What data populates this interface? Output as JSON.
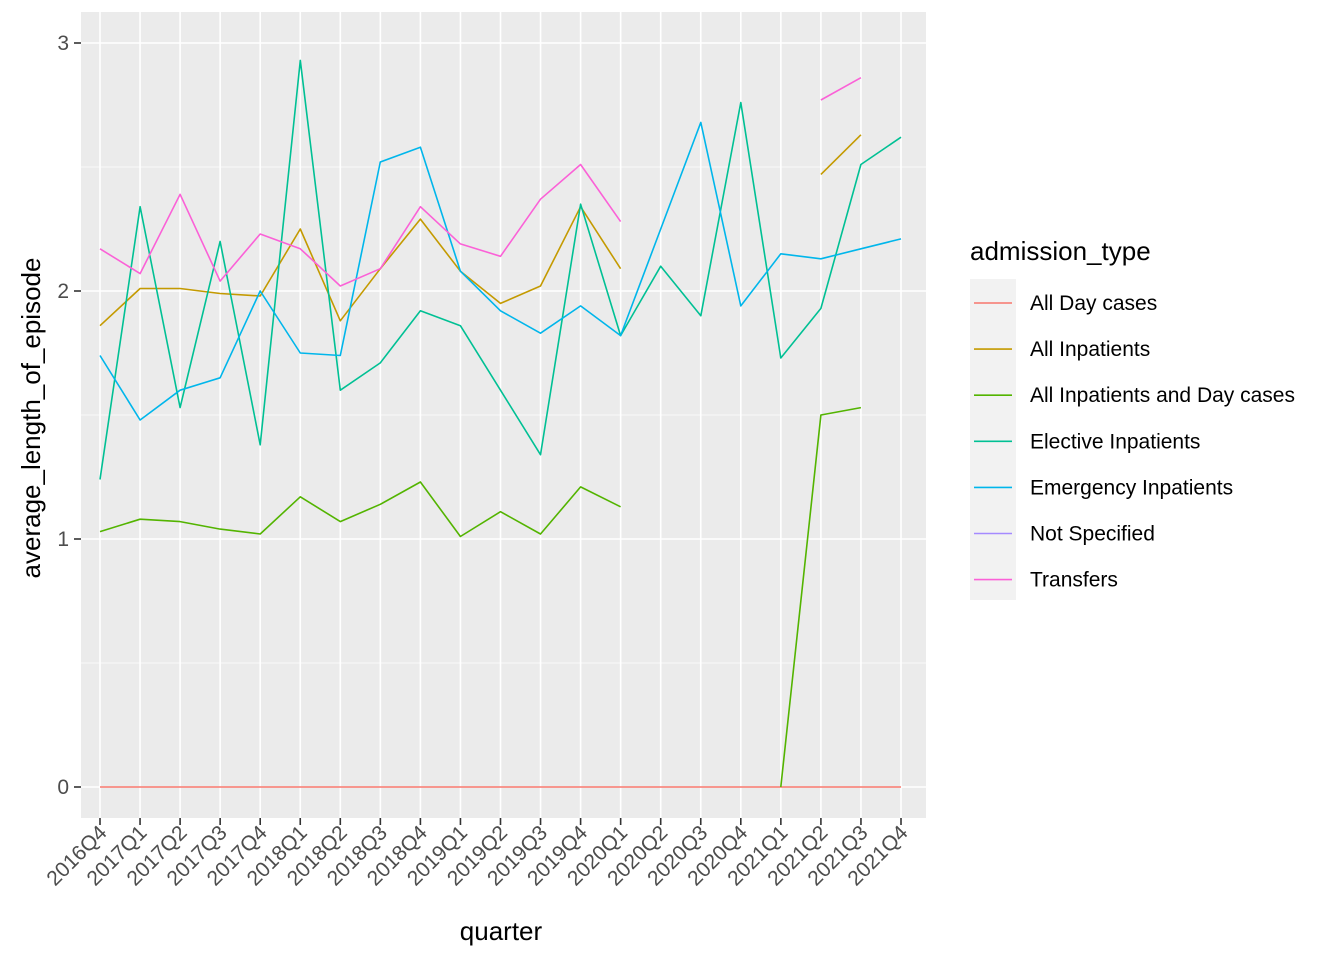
{
  "chart_data": {
    "type": "line",
    "xlabel": "quarter",
    "ylabel": "average_length_of_episode",
    "ylim": [
      -0.125,
      3.125
    ],
    "yticks": [
      0,
      1,
      2,
      3
    ],
    "grid": true,
    "legend_position": "right",
    "legend_title": "admission_type",
    "categories": [
      "2016Q4",
      "2017Q1",
      "2017Q2",
      "2017Q3",
      "2017Q4",
      "2018Q1",
      "2018Q2",
      "2018Q3",
      "2018Q4",
      "2019Q1",
      "2019Q2",
      "2019Q3",
      "2019Q4",
      "2020Q1",
      "2020Q2",
      "2020Q3",
      "2020Q4",
      "2021Q1",
      "2021Q2",
      "2021Q3",
      "2021Q4"
    ],
    "series": [
      {
        "name": "All Day cases",
        "color": "#F8766D",
        "values": [
          0,
          0,
          0,
          0,
          0,
          0,
          0,
          0,
          0,
          0,
          0,
          0,
          0,
          0,
          0,
          0,
          0,
          0,
          0,
          0,
          0
        ]
      },
      {
        "name": "All Inpatients",
        "color": "#C49A00",
        "values": [
          1.86,
          2.01,
          2.01,
          1.99,
          1.98,
          2.25,
          1.88,
          2.09,
          2.29,
          2.08,
          1.95,
          2.02,
          2.34,
          2.09,
          null,
          null,
          null,
          null,
          2.47,
          2.63,
          null
        ]
      },
      {
        "name": "All Inpatients and Day cases",
        "color": "#53B400",
        "values": [
          1.03,
          1.08,
          1.07,
          1.04,
          1.02,
          1.17,
          1.07,
          1.14,
          1.23,
          1.01,
          1.11,
          1.02,
          1.21,
          1.13,
          null,
          null,
          null,
          0,
          1.5,
          1.53,
          null
        ]
      },
      {
        "name": "Elective Inpatients",
        "color": "#00C094",
        "values": [
          1.24,
          2.34,
          1.53,
          2.2,
          1.38,
          2.93,
          1.6,
          1.71,
          1.92,
          1.86,
          1.6,
          1.34,
          2.35,
          1.82,
          2.1,
          1.9,
          2.76,
          1.73,
          1.93,
          2.51,
          2.62
        ]
      },
      {
        "name": "Emergency Inpatients",
        "color": "#00B6EB",
        "values": [
          1.74,
          1.48,
          1.6,
          1.65,
          2.0,
          1.75,
          1.74,
          2.52,
          2.58,
          2.08,
          1.92,
          1.83,
          1.94,
          1.82,
          2.25,
          2.68,
          1.94,
          2.15,
          2.13,
          2.17,
          2.21
        ]
      },
      {
        "name": "Not Specified",
        "color": "#A58AFF",
        "values": [
          null,
          null,
          null,
          null,
          null,
          null,
          null,
          null,
          null,
          null,
          null,
          null,
          null,
          null,
          null,
          null,
          null,
          null,
          null,
          null,
          null
        ]
      },
      {
        "name": "Transfers",
        "color": "#FB61D7",
        "values": [
          2.17,
          2.07,
          2.39,
          2.04,
          2.23,
          2.17,
          2.02,
          2.09,
          2.34,
          2.19,
          2.14,
          2.37,
          2.51,
          2.28,
          null,
          null,
          null,
          null,
          2.77,
          2.86,
          null
        ]
      }
    ]
  }
}
